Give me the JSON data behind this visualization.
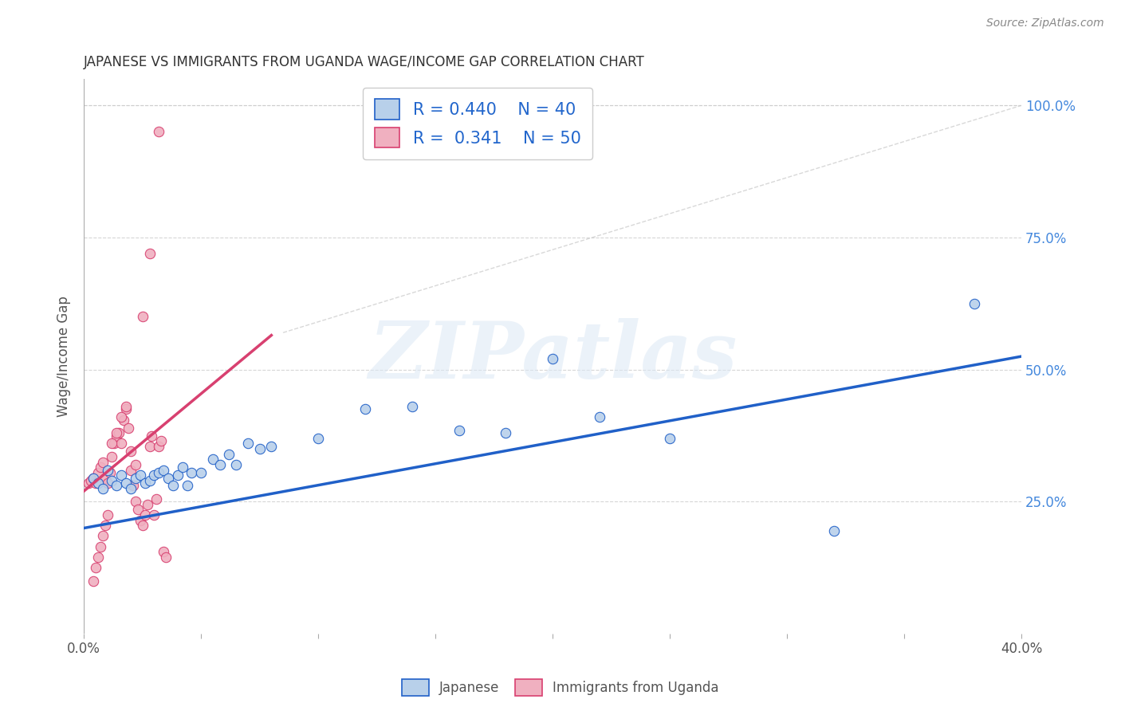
{
  "title": "JAPANESE VS IMMIGRANTS FROM UGANDA WAGE/INCOME GAP CORRELATION CHART",
  "source": "Source: ZipAtlas.com",
  "ylabel": "Wage/Income Gap",
  "yticks": [
    "100.0%",
    "75.0%",
    "50.0%",
    "25.0%"
  ],
  "ytick_vals": [
    1.0,
    0.75,
    0.5,
    0.25
  ],
  "watermark": "ZIPatlas",
  "legend_blue_R": "R = 0.440",
  "legend_blue_N": "N = 40",
  "legend_pink_R": "R =  0.341",
  "legend_pink_N": "N = 50",
  "legend_label_blue": "Japanese",
  "legend_label_pink": "Immigrants from Uganda",
  "blue_scatter_color": "#b8d0ea",
  "pink_scatter_color": "#f0b0c0",
  "blue_line_color": "#2060c8",
  "pink_line_color": "#d84070",
  "blue_scatter_x": [
    0.004,
    0.006,
    0.008,
    0.01,
    0.012,
    0.014,
    0.016,
    0.018,
    0.02,
    0.022,
    0.024,
    0.026,
    0.028,
    0.03,
    0.032,
    0.034,
    0.036,
    0.038,
    0.04,
    0.042,
    0.044,
    0.046,
    0.05,
    0.055,
    0.058,
    0.062,
    0.065,
    0.07,
    0.075,
    0.08,
    0.1,
    0.12,
    0.14,
    0.16,
    0.18,
    0.2,
    0.22,
    0.25,
    0.32,
    0.38
  ],
  "blue_scatter_y": [
    0.295,
    0.285,
    0.275,
    0.31,
    0.29,
    0.28,
    0.3,
    0.285,
    0.275,
    0.295,
    0.3,
    0.285,
    0.29,
    0.3,
    0.305,
    0.31,
    0.295,
    0.28,
    0.3,
    0.315,
    0.28,
    0.305,
    0.305,
    0.33,
    0.32,
    0.34,
    0.32,
    0.36,
    0.35,
    0.355,
    0.37,
    0.425,
    0.43,
    0.385,
    0.38,
    0.52,
    0.41,
    0.37,
    0.195,
    0.625
  ],
  "pink_scatter_x": [
    0.002,
    0.003,
    0.004,
    0.005,
    0.006,
    0.007,
    0.008,
    0.009,
    0.01,
    0.011,
    0.012,
    0.013,
    0.014,
    0.015,
    0.016,
    0.017,
    0.018,
    0.019,
    0.02,
    0.021,
    0.022,
    0.023,
    0.024,
    0.025,
    0.026,
    0.027,
    0.028,
    0.029,
    0.03,
    0.031,
    0.032,
    0.033,
    0.034,
    0.035,
    0.004,
    0.005,
    0.006,
    0.007,
    0.008,
    0.009,
    0.01,
    0.012,
    0.014,
    0.016,
    0.018,
    0.02,
    0.022,
    0.025,
    0.028,
    0.032
  ],
  "pink_scatter_y": [
    0.285,
    0.29,
    0.295,
    0.285,
    0.305,
    0.315,
    0.325,
    0.295,
    0.285,
    0.305,
    0.335,
    0.36,
    0.375,
    0.38,
    0.36,
    0.405,
    0.425,
    0.39,
    0.31,
    0.28,
    0.25,
    0.235,
    0.215,
    0.205,
    0.225,
    0.245,
    0.355,
    0.375,
    0.225,
    0.255,
    0.355,
    0.365,
    0.155,
    0.145,
    0.1,
    0.125,
    0.145,
    0.165,
    0.185,
    0.205,
    0.225,
    0.36,
    0.38,
    0.41,
    0.43,
    0.345,
    0.32,
    0.6,
    0.72,
    0.95
  ],
  "blue_line_x": [
    0.0,
    0.4
  ],
  "blue_line_y": [
    0.2,
    0.525
  ],
  "pink_line_x": [
    0.0,
    0.08
  ],
  "pink_line_y": [
    0.27,
    0.565
  ],
  "dashed_line_x": [
    0.085,
    0.4
  ],
  "dashed_line_y": [
    0.57,
    1.0
  ],
  "xlim": [
    0.0,
    0.4
  ],
  "ylim": [
    0.0,
    1.05
  ],
  "background_color": "#ffffff",
  "grid_color": "#cccccc"
}
